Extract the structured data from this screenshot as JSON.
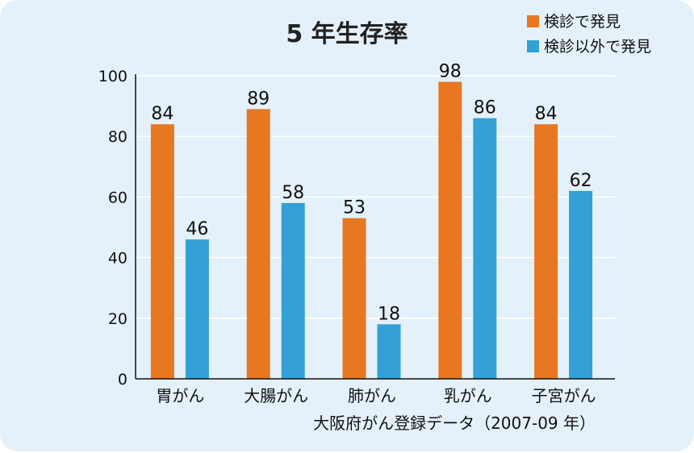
{
  "chart_data": {
    "type": "bar",
    "title": "5 年生存率",
    "categories": [
      "胃がん",
      "大腸がん",
      "肺がん",
      "乳がん",
      "子宮がん"
    ],
    "series": [
      {
        "name": "検診で発見",
        "color": "#e87722",
        "values": [
          84,
          89,
          53,
          98,
          84
        ]
      },
      {
        "name": "検診以外で発見",
        "color": "#33a0d6",
        "values": [
          46,
          58,
          18,
          86,
          62
        ]
      }
    ],
    "ylim": [
      0,
      100
    ],
    "yticks": [
      0,
      20,
      40,
      60,
      80,
      100
    ],
    "grid": true,
    "legend_position": "top-right",
    "source_note": "大阪府がん登録データ（2007-09 年）"
  }
}
